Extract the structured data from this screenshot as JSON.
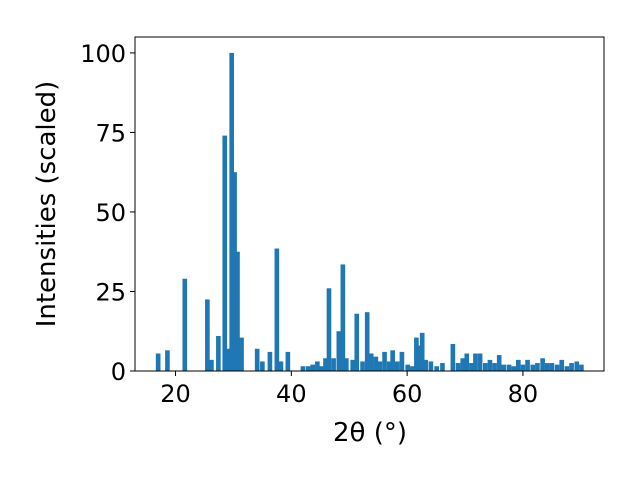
{
  "chart_data": {
    "type": "bar",
    "xlabel": "2θ (°)",
    "ylabel": "Intensities (scaled)",
    "xlim": [
      13,
      94
    ],
    "ylim": [
      0,
      105
    ],
    "xticks": [
      20,
      40,
      60,
      80
    ],
    "yticks": [
      0,
      25,
      50,
      75,
      100
    ],
    "bar_width": 0.8,
    "colors": {
      "bar": "#1f77b4",
      "axis": "#000000"
    },
    "grid": false,
    "legend": "none",
    "series": [
      {
        "x": [
          17.0,
          18.6,
          21.6,
          25.5,
          26.2,
          27.4,
          28.5,
          29.1,
          29.7,
          30.2,
          30.7,
          31.4,
          34.1,
          35.0,
          36.3,
          37.5,
          38.2,
          39.4,
          42.0,
          42.9,
          43.7,
          44.5,
          45.2,
          45.9,
          46.5,
          47.3,
          48.2,
          48.9,
          49.5,
          50.6,
          51.3,
          52.3,
          53.1,
          53.8,
          54.6,
          55.3,
          56.1,
          56.9,
          57.5,
          58.3,
          59.1,
          60.1,
          60.9,
          61.6,
          62.1,
          62.6,
          63.2,
          64.1,
          65.1,
          66.1,
          67.9,
          68.8,
          69.6,
          70.3,
          71.1,
          71.8,
          72.6,
          73.5,
          74.3,
          75.1,
          75.9,
          76.7,
          77.6,
          78.4,
          79.2,
          80.0,
          80.8,
          81.7,
          82.5,
          83.4,
          84.2,
          85.0,
          85.9,
          86.7,
          87.6,
          88.4,
          89.3,
          90.1
        ],
        "values": [
          5.5,
          6.5,
          29,
          22.5,
          3.5,
          11,
          74,
          7,
          100,
          62.5,
          37.5,
          10.5,
          7,
          3,
          6,
          38.5,
          3,
          6,
          1.5,
          1.5,
          2,
          3,
          1.5,
          4,
          26,
          4,
          12.5,
          33.5,
          4,
          3.5,
          18,
          3,
          18.5,
          5.5,
          4.5,
          3,
          6,
          3,
          6.5,
          3,
          6,
          2,
          1.5,
          10.5,
          8,
          12,
          3.5,
          3,
          1.5,
          2.5,
          8.5,
          2.5,
          4,
          5.5,
          2.5,
          5.5,
          5.5,
          2.5,
          3.5,
          2.5,
          5,
          2,
          2,
          1.5,
          3.5,
          2,
          3.5,
          2,
          2.5,
          4,
          2.5,
          2.5,
          2,
          3.5,
          1.5,
          2.5,
          3,
          2
        ]
      }
    ]
  }
}
